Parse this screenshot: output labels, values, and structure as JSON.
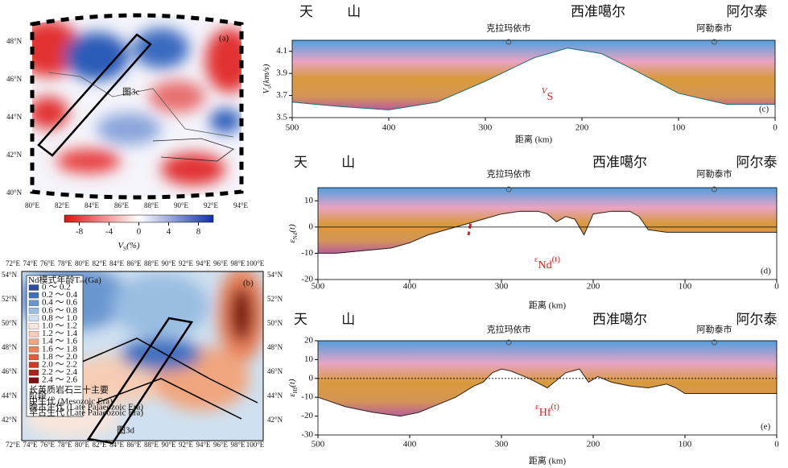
{
  "chart_data": [
    {
      "type": "map",
      "label": "(a)",
      "annotation": "图3c",
      "xticks": [
        "80°E",
        "82°E",
        "84°E",
        "86°E",
        "88°E",
        "90°E",
        "92°E",
        "94°E"
      ],
      "yticks": [
        "48°N",
        "46°N",
        "44°N",
        "42°N",
        "40°N"
      ],
      "colorbar": {
        "lim": [
          -10,
          10
        ],
        "ticks": [
          -8,
          -4,
          0,
          4,
          8
        ],
        "label": {
          "text": "V",
          "sub": "S",
          "tail": "(%)"
        }
      }
    },
    {
      "type": "map",
      "label": "(b)",
      "annotation": "图3d",
      "xticks": [
        "72°E",
        "74°E",
        "76°E",
        "78°E",
        "80°E",
        "82°E",
        "84°E",
        "86°E",
        "88°E",
        "90°E",
        "92°E",
        "94°E",
        "96°E",
        "98°E",
        "100°E"
      ],
      "yticks": [
        "54°N",
        "52°N",
        "50°N",
        "48°N",
        "46°N",
        "44°N",
        "42°N"
      ],
      "legend_title": {
        "text": "Nd模式年龄T",
        "sub": "DM",
        "tail": "(Ga)"
      },
      "legend": [
        {
          "name": "0 ～ 0.2",
          "color": "#2a4fa0"
        },
        {
          "name": "0.2 ～ 0.4",
          "color": "#3f6fbf"
        },
        {
          "name": "0.4 ～ 0.6",
          "color": "#6a96d0"
        },
        {
          "name": "0.6 ～ 0.8",
          "color": "#9abde2"
        },
        {
          "name": "0.8 ～ 1.0",
          "color": "#cfe0f0"
        },
        {
          "name": "1.0 ～ 1.2",
          "color": "#f7e6dc"
        },
        {
          "name": "1.2 ～ 1.4",
          "color": "#f6cdb4"
        },
        {
          "name": "1.4 ～ 1.6",
          "color": "#f0a67e"
        },
        {
          "name": "1.6 ～ 1.8",
          "color": "#e8825a"
        },
        {
          "name": "1.8 ～ 2.0",
          "color": "#dd5f3a"
        },
        {
          "name": "2.0 ～ 2.2",
          "color": "#c93c25"
        },
        {
          "name": "2.2 ～ 2.4",
          "color": "#a82318"
        },
        {
          "name": "2.4 ～ 2.6",
          "color": "#7a1010"
        }
      ],
      "notes": [
        "长英质岩石三十主要",
        "阶段",
        "中生代 (Mesozoic Era)",
        "晚古生代 (Late Palaeozoic Era)",
        "早古生代 (Late Palaeozoic Era)"
      ]
    },
    {
      "type": "area",
      "label": "(c)",
      "headers": [
        "天 山",
        "西准噶尔",
        "阿尔泰"
      ],
      "cities": [
        "克拉玛依市",
        "阿勒泰市"
      ],
      "city_x": [
        276,
        63
      ],
      "xlabel": "距离 (km)",
      "ylabel": {
        "text": "V",
        "sub": "s",
        "tail": "(km/s)"
      },
      "annotation": {
        "text": "V",
        "sub": "S",
        "tail": ""
      },
      "xlim": [
        500,
        0
      ],
      "xticks": [
        500,
        400,
        300,
        200,
        100,
        0
      ],
      "ylim": [
        3.5,
        4.2
      ],
      "yticks": [
        3.5,
        3.7,
        3.9,
        4.1
      ],
      "x": [
        500,
        450,
        400,
        350,
        300,
        250,
        215,
        180,
        150,
        100,
        50,
        0
      ],
      "values": [
        3.64,
        3.6,
        3.57,
        3.64,
        3.83,
        4.04,
        4.13,
        4.08,
        3.95,
        3.72,
        3.62,
        3.62
      ]
    },
    {
      "type": "area",
      "label": "(d)",
      "headers": [
        "天 山",
        "西准噶尔",
        "阿尔泰"
      ],
      "cities": [
        "克拉玛依市",
        "阿勒泰市"
      ],
      "city_x": [
        292,
        68
      ],
      "xlabel": "距离 (km)",
      "ylabel": {
        "text": "ε",
        "sub": "Nd",
        "tail": "(t)"
      },
      "annotation": {
        "text": "ε",
        "sub": "Nd",
        "tail": "(t)"
      },
      "xlim": [
        500,
        0
      ],
      "xticks": [
        500,
        400,
        300,
        200,
        100,
        0
      ],
      "ylim": [
        -20,
        15
      ],
      "yticks": [
        -20,
        -10,
        0,
        10
      ],
      "x": [
        500,
        480,
        450,
        420,
        400,
        380,
        350,
        320,
        300,
        280,
        260,
        250,
        240,
        230,
        220,
        210,
        200,
        180,
        160,
        150,
        140,
        120,
        100,
        50,
        0
      ],
      "values": [
        -10,
        -10,
        -9,
        -8,
        -6,
        -3,
        0,
        3,
        5,
        6,
        6,
        5,
        2,
        4,
        3,
        -3,
        5,
        6,
        6,
        4,
        -1,
        -2,
        -2,
        -2,
        -2
      ]
    },
    {
      "type": "area",
      "label": "(e)",
      "headers": [
        "天 山",
        "西准噶尔",
        "阿尔泰"
      ],
      "cities": [
        "克拉玛依市",
        "阿勒泰市"
      ],
      "city_x": [
        292,
        68
      ],
      "xlabel": "距离 (km)",
      "ylabel": {
        "text": "ε",
        "sub": "Hf",
        "tail": "(t)"
      },
      "annotation": {
        "text": "ε",
        "sub": "Hf",
        "tail": "(t)"
      },
      "xlim": [
        500,
        0
      ],
      "xticks": [
        500,
        400,
        300,
        200,
        100,
        0
      ],
      "ylim": [
        -30,
        20
      ],
      "yticks": [
        -30,
        -20,
        -10,
        0,
        10,
        20
      ],
      "x": [
        500,
        470,
        440,
        410,
        390,
        370,
        350,
        330,
        320,
        310,
        300,
        290,
        270,
        250,
        230,
        215,
        205,
        195,
        180,
        160,
        140,
        120,
        110,
        100,
        50,
        0
      ],
      "values": [
        -10,
        -15,
        -18,
        -20,
        -18,
        -14,
        -10,
        -4,
        -2,
        3,
        5,
        4,
        0,
        -5,
        3,
        5,
        -2,
        1,
        -2,
        -4,
        -5,
        -3,
        -5,
        -8,
        -8,
        -8
      ]
    }
  ]
}
